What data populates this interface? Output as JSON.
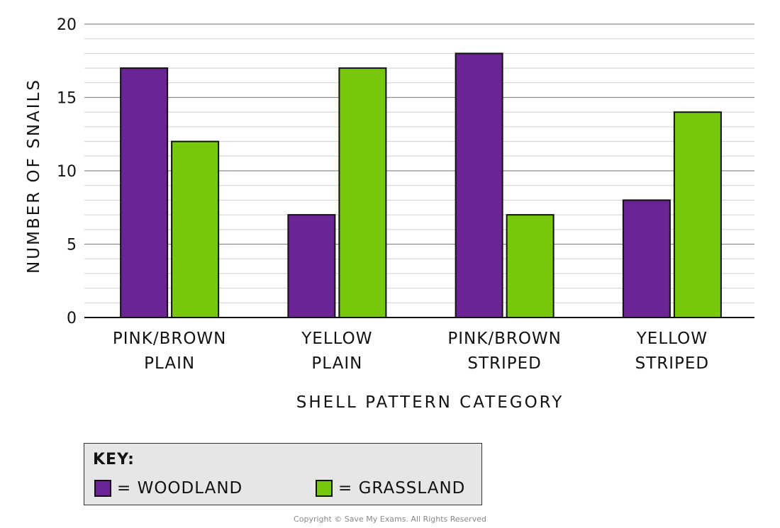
{
  "chart_data": {
    "type": "bar",
    "categories": [
      [
        "PINK/BROWN",
        "PLAIN"
      ],
      [
        "YELLOW",
        "PLAIN"
      ],
      [
        "PINK/BROWN",
        "STRIPED"
      ],
      [
        "YELLOW",
        "STRIPED"
      ]
    ],
    "series": [
      {
        "name": "WOODLAND",
        "values": [
          17,
          7,
          18,
          8
        ],
        "color": "#6b2494"
      },
      {
        "name": "GRASSLAND",
        "values": [
          12,
          17,
          7,
          14
        ],
        "color": "#77c80d"
      }
    ],
    "xlabel": "SHELL PATTERN CATEGORY",
    "ylabel": "NUMBER OF SNAILS",
    "ylim": [
      0,
      20
    ],
    "yticks": [
      "0",
      "5",
      "10",
      "15",
      "20"
    ],
    "grid": true
  },
  "key": {
    "title": "KEY:",
    "woodland": "= WOODLAND",
    "grassland": "= GRASSLAND"
  },
  "copyright": "Copyright © Save My Exams. All Rights Reserved"
}
